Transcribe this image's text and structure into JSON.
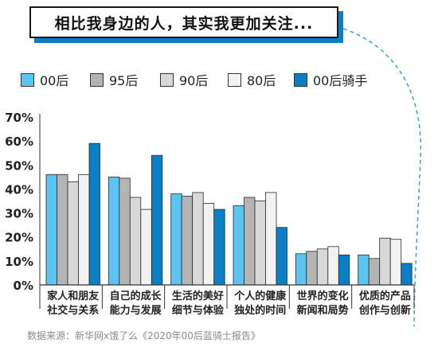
{
  "title": "相比我身边的人，其实我更加关注...",
  "source": "数据来源：新华网x饿了么《2020年00后蓝骑士报告》",
  "colors": {
    "accent": "#0a7fc6",
    "dashed_curve": "#4a9ad4"
  },
  "chart_data": {
    "type": "bar",
    "title": "",
    "xlabel": "",
    "ylabel": "",
    "ylim": [
      0,
      70
    ],
    "yticks": [
      "0%",
      "10%",
      "20%",
      "30%",
      "40%",
      "50%",
      "60%",
      "70%"
    ],
    "grid": false,
    "legend_position": "top",
    "categories": [
      [
        "家人和朋友",
        "社交与关系"
      ],
      [
        "自己的成长",
        "能力与发展"
      ],
      [
        "生活的美好",
        "细节与体验"
      ],
      [
        "个人的健康",
        "独处的时间"
      ],
      [
        "世界的变化",
        "新闻和局势"
      ],
      [
        "优质的产品",
        "创作与创新"
      ]
    ],
    "series": [
      {
        "name": "00后",
        "color": "#5bc4f1",
        "values": [
          46,
          45,
          38,
          33,
          13,
          12.5
        ]
      },
      {
        "name": "95后",
        "color": "#b4b4b4",
        "values": [
          46,
          44.5,
          37,
          36.5,
          14,
          11
        ]
      },
      {
        "name": "90后",
        "color": "#d8d8d8",
        "values": [
          43,
          36.5,
          38.5,
          35,
          15,
          19.5
        ]
      },
      {
        "name": "80后",
        "color": "#f2f2f2",
        "values": [
          46,
          31.5,
          34,
          38.5,
          16,
          19
        ]
      },
      {
        "name": "00后骑手",
        "color": "#0a7fc6",
        "values": [
          59,
          54,
          31.5,
          24,
          12.5,
          9
        ]
      }
    ]
  }
}
